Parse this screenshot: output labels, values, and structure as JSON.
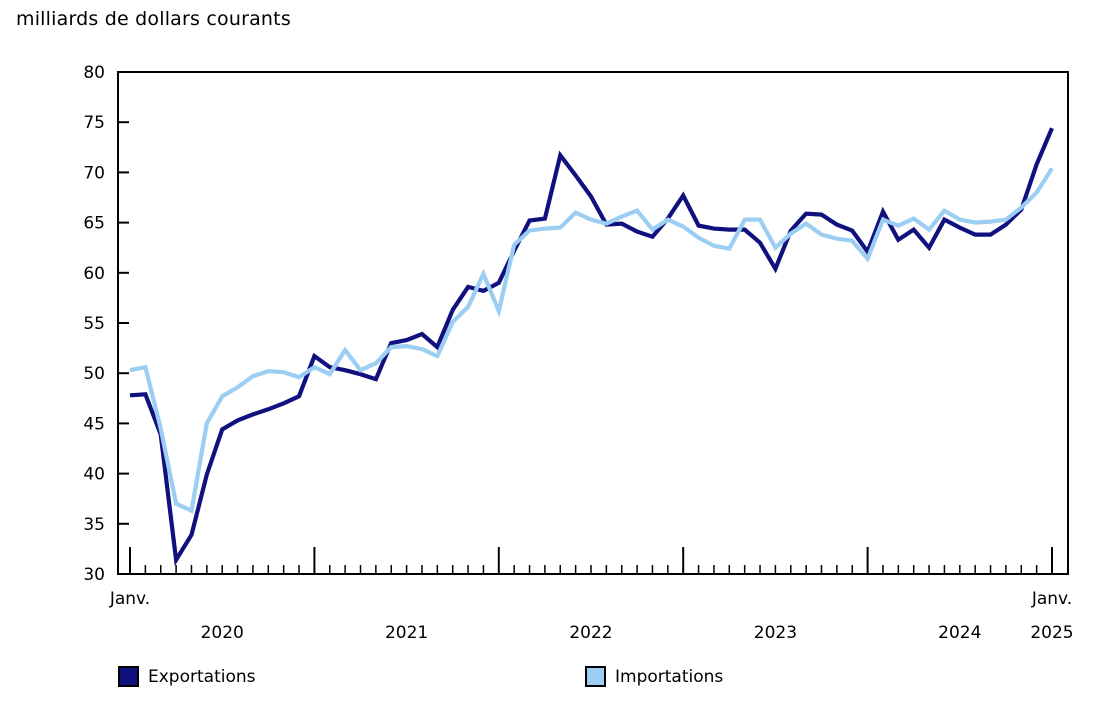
{
  "title": "milliards de dollars courants",
  "colors": {
    "exports": "#10107E",
    "imports": "#9CCDF2",
    "axis": "#000000",
    "background": "#FFFFFF"
  },
  "legend": [
    {
      "label": "Exportations",
      "color_key": "exports"
    },
    {
      "label": "Importations",
      "color_key": "imports"
    }
  ],
  "chart_data": {
    "type": "line",
    "title": "milliards de dollars courants",
    "x_frequency": "monthly",
    "x_start": "2020-01",
    "x_end": "2025-01",
    "y_axis": {
      "min": 30,
      "max": 80,
      "step": 5
    },
    "x_axis": {
      "start_label": "Janv.",
      "end_label": "Janv.",
      "year_labels": [
        "2020",
        "2021",
        "2022",
        "2023",
        "2024",
        "2025"
      ],
      "minor_tick": "monthly",
      "major_tick": "january"
    },
    "grid": false,
    "legend_position": "bottom",
    "series": [
      {
        "name": "Exportations",
        "color_key": "exports",
        "values": [
          47.8,
          47.9,
          43.9,
          31.4,
          33.9,
          39.9,
          44.4,
          45.3,
          45.9,
          46.4,
          47.0,
          47.7,
          51.7,
          50.6,
          50.3,
          49.9,
          49.4,
          53.0,
          53.3,
          53.9,
          52.6,
          56.3,
          58.6,
          58.2,
          59.0,
          62.2,
          65.2,
          65.4,
          71.7,
          69.7,
          67.6,
          64.8,
          64.9,
          64.1,
          63.6,
          65.4,
          67.7,
          64.7,
          64.4,
          64.3,
          64.3,
          63.0,
          60.4,
          64.2,
          65.9,
          65.8,
          64.8,
          64.2,
          62.1,
          66.1,
          63.3,
          64.3,
          62.5,
          65.3,
          64.5,
          63.8,
          63.8,
          64.8,
          66.3,
          70.8,
          74.4
        ]
      },
      {
        "name": "Importations",
        "color_key": "imports",
        "values": [
          50.3,
          50.6,
          44.5,
          37.0,
          36.3,
          45.0,
          47.7,
          48.6,
          49.7,
          50.2,
          50.1,
          49.6,
          50.6,
          49.9,
          52.3,
          50.3,
          51.0,
          52.6,
          52.7,
          52.4,
          51.7,
          55.1,
          56.6,
          59.9,
          56.2,
          62.8,
          64.2,
          64.4,
          64.5,
          66.0,
          65.3,
          64.9,
          65.6,
          66.2,
          64.3,
          65.3,
          64.6,
          63.5,
          62.7,
          62.4,
          65.3,
          65.3,
          62.5,
          63.9,
          64.9,
          63.8,
          63.4,
          63.2,
          61.4,
          65.3,
          64.7,
          65.4,
          64.3,
          66.2,
          65.3,
          65.0,
          65.1,
          65.3,
          66.5,
          68.0,
          70.4
        ]
      }
    ]
  }
}
